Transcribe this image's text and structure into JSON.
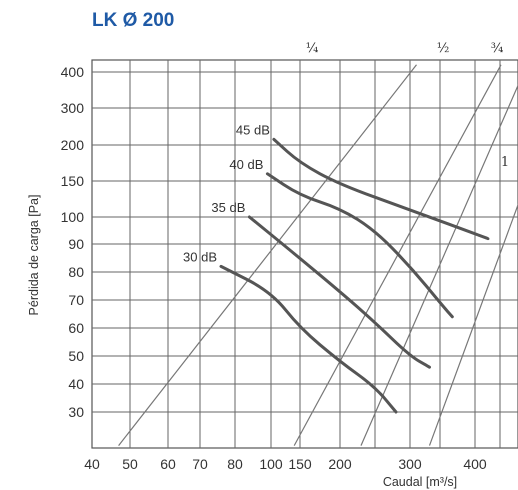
{
  "chart_data": {
    "type": "line",
    "title": "LK Ø 200",
    "xlabel": "Caudal  [m³/s]",
    "ylabel": "Pérdida de carga  [Pa]",
    "x_tick_labels": [
      "40",
      "50",
      "60",
      "70",
      "80",
      "100",
      "150",
      "200",
      "300",
      "400"
    ],
    "y_tick_labels": [
      "400",
      "300",
      "200",
      "150",
      "100",
      "90",
      "80",
      "70",
      "60",
      "50",
      "40",
      "30"
    ],
    "grid": true,
    "series": [
      {
        "name": "45 dB",
        "points": [
          [
            105,
            215
          ],
          [
            150,
            175
          ],
          [
            200,
            145
          ],
          [
            300,
            110
          ],
          [
            420,
            92
          ]
        ]
      },
      {
        "name": "40 dB",
        "points": [
          [
            98,
            160
          ],
          [
            150,
            130
          ],
          [
            200,
            112
          ],
          [
            250,
            95
          ],
          [
            300,
            82
          ],
          [
            350,
            68
          ],
          [
            365,
            64
          ]
        ]
      },
      {
        "name": "35 dB",
        "points": [
          [
            88,
            100
          ],
          [
            120,
            90
          ],
          [
            200,
            73
          ],
          [
            250,
            62
          ],
          [
            300,
            50
          ],
          [
            330,
            46
          ]
        ]
      },
      {
        "name": "30 dB",
        "points": [
          [
            76,
            82
          ],
          [
            100,
            73
          ],
          [
            150,
            60
          ],
          [
            200,
            48
          ],
          [
            250,
            39
          ],
          [
            280,
            30
          ]
        ]
      }
    ],
    "opening_lines": [
      {
        "name": "¼",
        "points": [
          [
            47,
            18
          ],
          [
            310,
            420
          ]
        ]
      },
      {
        "name": "½",
        "points": [
          [
            140,
            18
          ],
          [
            440,
            420
          ]
        ]
      },
      {
        "name": "¾",
        "points": [
          [
            230,
            18
          ],
          [
            480,
            420
          ]
        ]
      },
      {
        "name": "1",
        "points": [
          [
            330,
            18
          ],
          [
            500,
            200
          ]
        ]
      }
    ]
  }
}
